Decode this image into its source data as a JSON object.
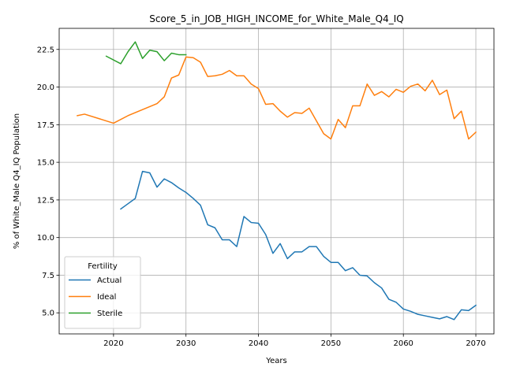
{
  "chart_data": {
    "type": "line",
    "title": "Score_5_in_JOB_HIGH_INCOME_for_White_Male_Q4_IQ",
    "xlabel": "Years",
    "ylabel": "% of White_Male Q4_IQ Population",
    "xlim": [
      2012.5,
      2072.5
    ],
    "ylim": [
      3.6,
      23.9
    ],
    "xticks": [
      2020,
      2030,
      2040,
      2050,
      2060,
      2070
    ],
    "xtick_labels": [
      "2020",
      "2030",
      "2040",
      "2050",
      "2060",
      "2070"
    ],
    "yticks": [
      5.0,
      7.5,
      10.0,
      12.5,
      15.0,
      17.5,
      20.0,
      22.5
    ],
    "ytick_labels": [
      "5.0",
      "7.5",
      "10.0",
      "12.5",
      "15.0",
      "17.5",
      "20.0",
      "22.5"
    ],
    "grid": true,
    "legend": {
      "title": "Fertility",
      "position": "lower-left"
    },
    "series": [
      {
        "name": "Actual",
        "color": "#1f77b4",
        "x": [
          2021,
          2022,
          2023,
          2024,
          2025,
          2026,
          2027,
          2028,
          2029,
          2030,
          2031,
          2032,
          2033,
          2034,
          2035,
          2036,
          2037,
          2038,
          2039,
          2040,
          2041,
          2042,
          2043,
          2044,
          2045,
          2046,
          2047,
          2048,
          2049,
          2050,
          2051,
          2052,
          2053,
          2054,
          2055,
          2056,
          2057,
          2058,
          2059,
          2060,
          2061,
          2062,
          2063,
          2064,
          2065,
          2066,
          2067,
          2068,
          2069,
          2070
        ],
        "y": [
          11.9,
          12.25,
          12.6,
          14.4,
          14.3,
          13.35,
          13.9,
          13.65,
          13.3,
          13.0,
          12.6,
          12.15,
          10.85,
          10.65,
          9.85,
          9.85,
          9.4,
          11.4,
          11.0,
          10.95,
          10.2,
          8.95,
          9.6,
          8.6,
          9.05,
          9.05,
          9.4,
          9.4,
          8.75,
          8.35,
          8.35,
          7.8,
          8.0,
          7.5,
          7.45,
          7.0,
          6.65,
          5.9,
          5.7,
          5.25,
          5.1,
          4.9,
          4.8,
          4.7,
          4.6,
          4.75,
          4.55,
          5.2,
          5.15,
          5.5
        ]
      },
      {
        "name": "Ideal",
        "color": "#ff7f0e",
        "x": [
          2015,
          2016,
          2020,
          2022,
          2024,
          2026,
          2027,
          2028,
          2029,
          2030,
          2031,
          2032,
          2033,
          2034,
          2035,
          2036,
          2037,
          2038,
          2039,
          2040,
          2041,
          2042,
          2043,
          2044,
          2045,
          2046,
          2047,
          2048,
          2049,
          2050,
          2051,
          2052,
          2053,
          2054,
          2055,
          2056,
          2057,
          2058,
          2059,
          2060,
          2061,
          2062,
          2063,
          2064,
          2065,
          2066,
          2067,
          2068,
          2069,
          2070
        ],
        "y": [
          18.1,
          18.2,
          17.6,
          18.1,
          18.5,
          18.9,
          19.35,
          20.6,
          20.8,
          22.0,
          21.95,
          21.65,
          20.7,
          20.75,
          20.85,
          21.1,
          20.75,
          20.75,
          20.2,
          19.9,
          18.85,
          18.9,
          18.4,
          18.0,
          18.3,
          18.25,
          18.6,
          17.75,
          16.9,
          16.55,
          17.85,
          17.3,
          18.75,
          18.75,
          20.2,
          19.45,
          19.7,
          19.35,
          19.85,
          19.65,
          20.05,
          20.2,
          19.75,
          20.45,
          19.5,
          19.8,
          17.9,
          18.4,
          16.55,
          17.0
        ]
      },
      {
        "name": "Sterile",
        "color": "#2ca02c",
        "x": [
          2019,
          2021,
          2022,
          2023,
          2024,
          2025,
          2026,
          2027,
          2028,
          2029,
          2030
        ],
        "y": [
          22.05,
          21.55,
          22.35,
          23.0,
          21.9,
          22.45,
          22.35,
          21.75,
          22.25,
          22.15,
          22.15
        ]
      }
    ]
  }
}
